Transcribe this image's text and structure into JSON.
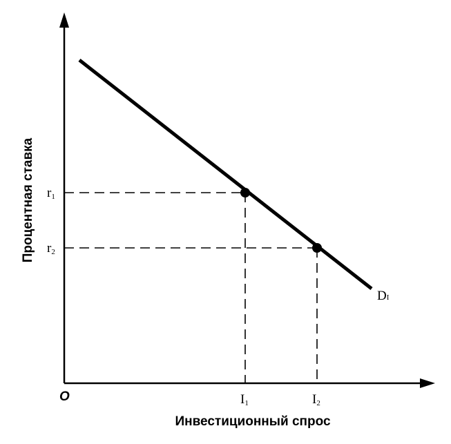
{
  "axes": {
    "x_label": "Инвестиционный спрос",
    "y_label": "Процентная ставка",
    "origin": "O"
  },
  "curve": {
    "label": {
      "main": "D",
      "sub": "I"
    }
  },
  "points": [
    {
      "r_label": {
        "main": "r",
        "sub": "1"
      },
      "i_label": {
        "main": "I",
        "sub": "1"
      }
    },
    {
      "r_label": {
        "main": "r",
        "sub": "2"
      },
      "i_label": {
        "main": "I",
        "sub": "2"
      }
    }
  ]
}
